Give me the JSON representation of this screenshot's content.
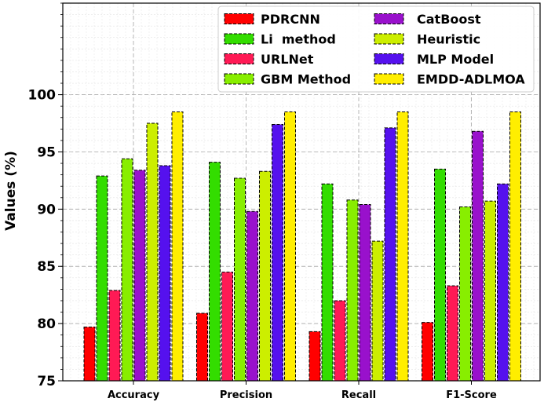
{
  "chart_data": {
    "type": "bar",
    "title": "",
    "xlabel": "",
    "ylabel": "Values (%)",
    "ylim": [
      75,
      108
    ],
    "yticks": [
      75,
      80,
      85,
      90,
      95,
      100
    ],
    "grid": true,
    "legend_position": "top-right",
    "categories": [
      "Accuracy",
      "Precision",
      "Recall",
      "F1-Score"
    ],
    "series": [
      {
        "name": "PDRCNN",
        "color": "#ff0000",
        "values": [
          79.7,
          80.9,
          79.3,
          80.1
        ]
      },
      {
        "name": "Li  method",
        "color": "#33dd00",
        "values": [
          92.9,
          94.1,
          92.2,
          93.5
        ]
      },
      {
        "name": "URLNet",
        "color": "#ff1a55",
        "values": [
          82.9,
          84.5,
          82.0,
          83.3
        ]
      },
      {
        "name": "GBM Method",
        "color": "#88ee00",
        "values": [
          94.4,
          92.7,
          90.8,
          90.2
        ]
      },
      {
        "name": "CatBoost",
        "color": "#9911cc",
        "values": [
          93.4,
          89.8,
          90.4,
          96.8
        ]
      },
      {
        "name": "Heuristic",
        "color": "#ccee00",
        "values": [
          97.5,
          93.3,
          87.2,
          90.7
        ]
      },
      {
        "name": "MLP Model",
        "color": "#5511ee",
        "values": [
          93.8,
          97.4,
          97.1,
          92.2
        ]
      },
      {
        "name": "EMDD-ADLMOA",
        "color": "#ffee00",
        "values": [
          98.5,
          98.5,
          98.5,
          98.5
        ]
      }
    ]
  }
}
